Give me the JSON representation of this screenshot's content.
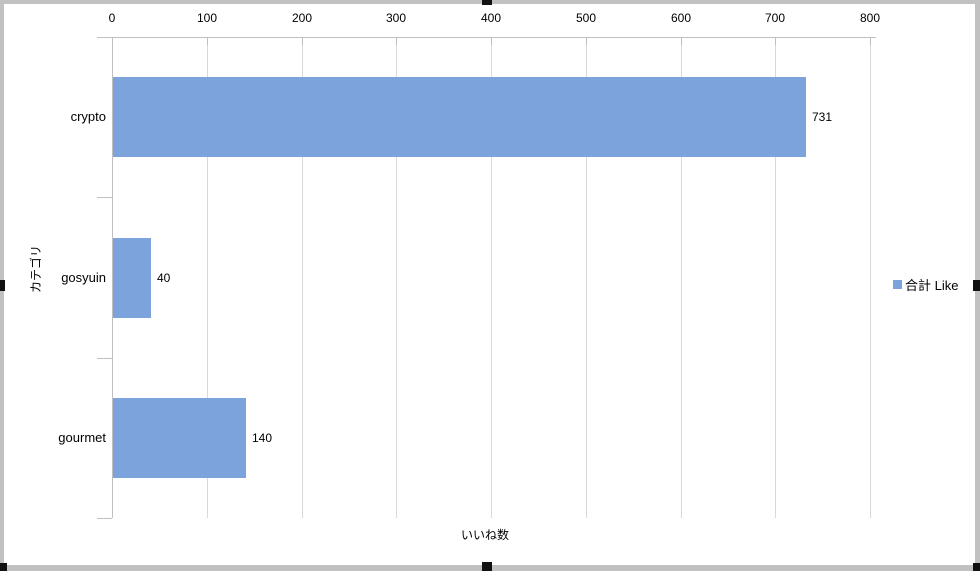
{
  "window": {
    "frame_color": "#c1c1c1",
    "handle_color": "#111111",
    "background": "#ffffff"
  },
  "chart_data": {
    "type": "bar",
    "orientation": "horizontal",
    "categories": [
      "crypto",
      "gosyuin",
      "gourmet"
    ],
    "series": [
      {
        "name": "合計 Like",
        "values": [
          731,
          40,
          140
        ]
      }
    ],
    "value_axis": {
      "label": "いいね数",
      "min": 0,
      "max": 800,
      "step": 100,
      "tick_labels": [
        "0",
        "100",
        "200",
        "300",
        "400",
        "500",
        "600",
        "700",
        "800"
      ],
      "position": "top"
    },
    "category_axis": {
      "label": "カテゴリ"
    },
    "show_data_labels": true,
    "legend": {
      "position": "right",
      "entries": [
        "合計 Like"
      ]
    },
    "grid": true,
    "colors": {
      "bar": "#7ca3db",
      "gridline": "#d9d9d9",
      "axis_line": "#bfbfbf",
      "text": "#000000"
    }
  }
}
